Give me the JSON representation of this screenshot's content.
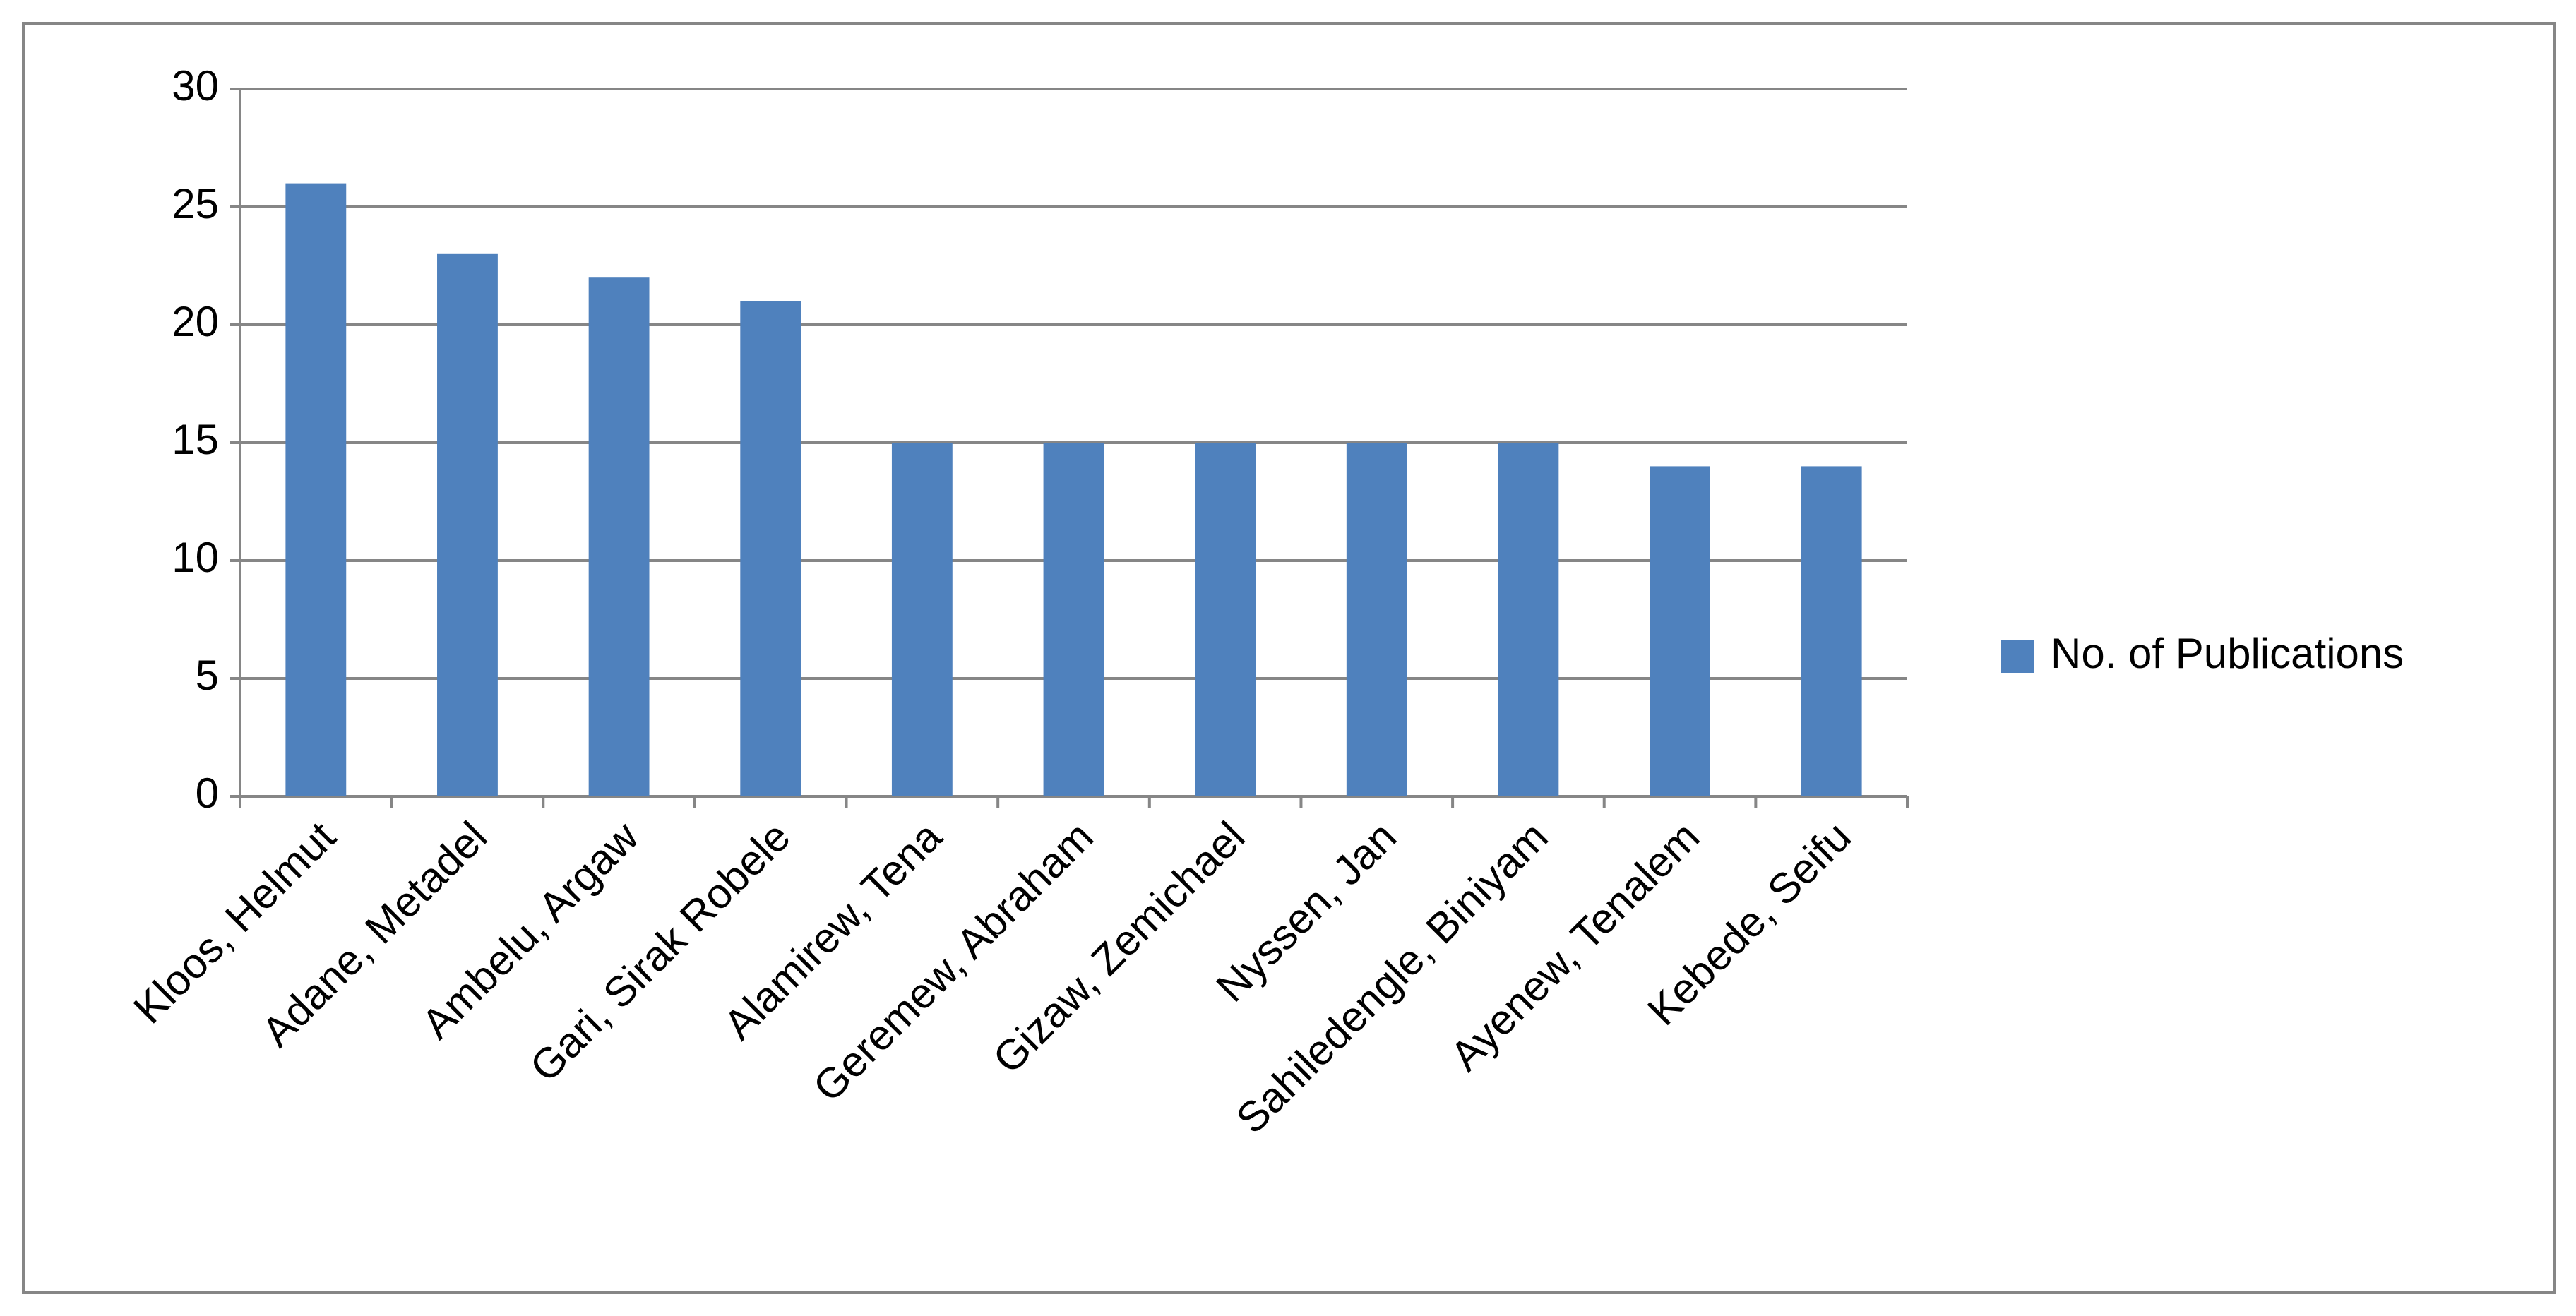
{
  "chart_data": {
    "type": "bar",
    "categories": [
      "Kloos, Helmut",
      "Adane, Metadel",
      "Ambelu, Argaw",
      "Gari, Sirak Robele",
      "Alamirew, Tena",
      "Geremew, Abraham",
      "Gizaw, Zemichael",
      "Nyssen, Jan",
      "Sahiledengle, Biniyam",
      "Ayenew, Tenalem",
      "Kebede, Seifu"
    ],
    "series": [
      {
        "name": "No. of Publications",
        "color": "#4f81bd",
        "values": [
          26,
          23,
          22,
          21,
          15,
          15,
          15,
          15,
          15,
          14,
          14
        ]
      }
    ],
    "ylim": [
      0,
      30
    ],
    "yticks": [
      0,
      5,
      10,
      15,
      20,
      25,
      30
    ],
    "grid": true,
    "legend": "right"
  }
}
